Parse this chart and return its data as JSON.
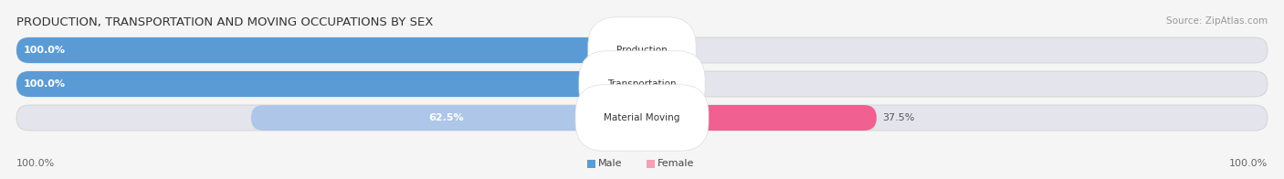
{
  "title": "PRODUCTION, TRANSPORTATION AND MOVING OCCUPATIONS BY SEX",
  "source": "Source: ZipAtlas.com",
  "categories": [
    "Production",
    "Transportation",
    "Material Moving"
  ],
  "male_values": [
    100.0,
    100.0,
    62.5
  ],
  "female_values": [
    0.0,
    0.0,
    37.5
  ],
  "male_color_dark": "#5b9bd5",
  "male_color_light": "#aec6e8",
  "female_color_light": "#f4a0b5",
  "female_color_dark": "#f06090",
  "bar_bg_color": "#e4e4ec",
  "fig_bg_color": "#f5f5f5",
  "title_fontsize": 9.5,
  "source_fontsize": 7.5,
  "label_fontsize": 8,
  "cat_label_fontsize": 7.5,
  "x_left_label": "100.0%",
  "x_right_label": "100.0%"
}
